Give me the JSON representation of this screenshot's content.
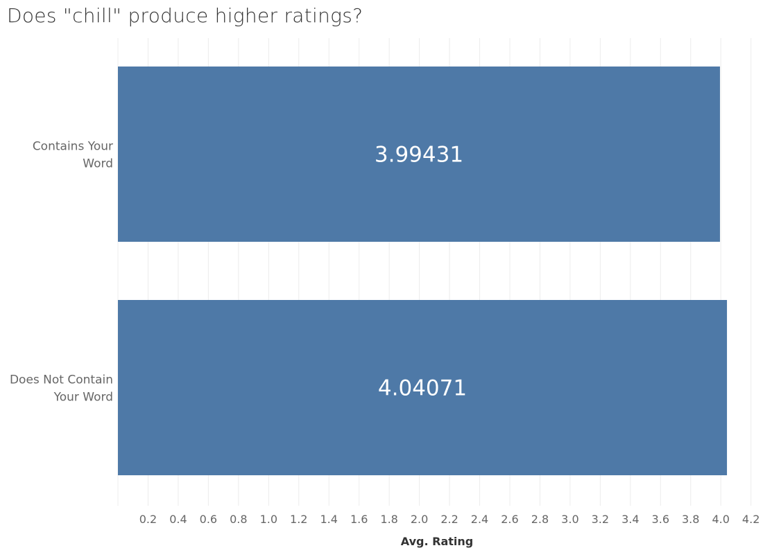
{
  "chart_data": {
    "type": "bar",
    "orientation": "horizontal",
    "title": "Does \"chill\" produce higher ratings?",
    "xlabel": "Avg. Rating",
    "ylabel": "",
    "categories": [
      [
        "Contains Your",
        "Word"
      ],
      [
        "Does Not Contain",
        "Your Word"
      ]
    ],
    "values": [
      3.99431,
      4.04071
    ],
    "value_labels": [
      "3.99431",
      "4.04071"
    ],
    "xlim": [
      0,
      4.2
    ],
    "ticks": [
      "0.2",
      "0.4",
      "0.6",
      "0.8",
      "1.0",
      "1.2",
      "1.4",
      "1.6",
      "1.8",
      "2.0",
      "2.2",
      "2.4",
      "2.6",
      "2.8",
      "3.0",
      "3.2",
      "3.4",
      "3.6",
      "3.8",
      "4.0",
      "4.2"
    ],
    "tick_values": [
      0.2,
      0.4,
      0.6,
      0.8,
      1.0,
      1.2,
      1.4,
      1.6,
      1.8,
      2.0,
      2.2,
      2.4,
      2.6,
      2.8,
      3.0,
      3.2,
      3.4,
      3.6,
      3.8,
      4.0,
      4.2
    ],
    "grid": true,
    "bar_color": "#4e79a7",
    "legend": "none"
  }
}
